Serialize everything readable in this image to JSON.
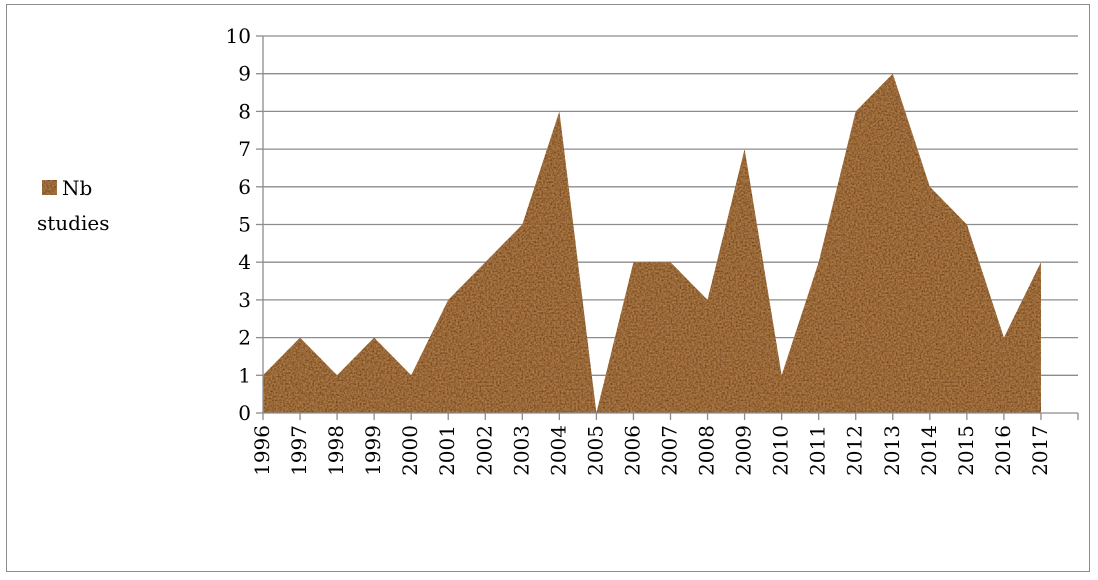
{
  "chart_data": {
    "type": "area",
    "categories": [
      "1996",
      "1997",
      "1998",
      "1999",
      "2000",
      "2001",
      "2002",
      "2003",
      "2004",
      "2005",
      "2006",
      "2007",
      "2008",
      "2009",
      "2010",
      "2011",
      "2012",
      "2013",
      "2014",
      "2015",
      "2016",
      "2017"
    ],
    "series": [
      {
        "name": "Nb studies",
        "values": [
          1,
          2,
          1,
          2,
          1,
          3,
          4,
          5,
          8,
          0,
          4,
          4,
          3,
          7,
          1,
          4,
          8,
          9,
          6,
          5,
          2,
          4
        ]
      }
    ],
    "ylim": [
      0,
      10
    ],
    "yticks": [
      0,
      1,
      2,
      3,
      4,
      5,
      6,
      7,
      8,
      9,
      10
    ],
    "grid": true,
    "legend": {
      "position": "left",
      "line1": "Nb",
      "line2": "studies"
    },
    "colors": {
      "fill_base": "#b07a45",
      "fill_dark": "#5a3414",
      "fill_light": "#dcbc8c",
      "grid": "#8c8c8c"
    },
    "title": "",
    "xlabel": "",
    "ylabel": ""
  }
}
